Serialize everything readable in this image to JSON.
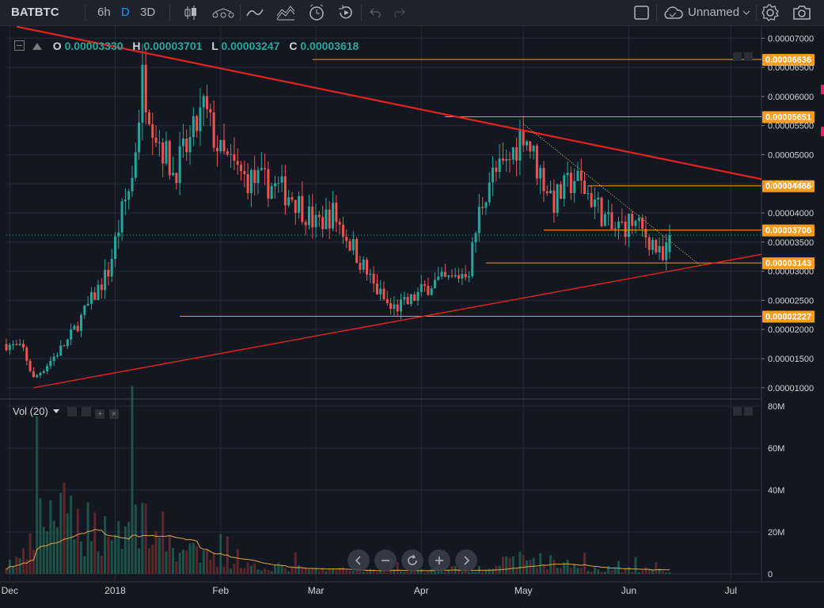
{
  "toolbar": {
    "symbol": "BATBTC",
    "intervals": [
      "6h",
      "D",
      "3D"
    ],
    "active_interval": "D",
    "layout_name": "Unnamed",
    "icons": [
      "candles-icon",
      "indicators-icon",
      "compare-icon",
      "alert-icon",
      "replay-icon",
      "undo-icon",
      "redo-icon",
      "fullscreen-icon",
      "cloud-icon",
      "settings-icon",
      "camera-icon"
    ]
  },
  "legend": {
    "o_label": "O",
    "o_value": "0.00003330",
    "h_label": "H",
    "h_value": "0.00003701",
    "l_label": "L",
    "l_value": "0.00003247",
    "c_label": "C",
    "c_value": "0.00003618"
  },
  "volume_legend": {
    "label": "Vol (20)"
  },
  "colors": {
    "up": "#26a69a",
    "down": "#ef5350",
    "trend": "#e5231d",
    "level": "#f89c1c",
    "bg": "#131722",
    "grid": "#262a36",
    "ma": "#e8a33d"
  },
  "chart_data": [
    {
      "type": "candlestick",
      "title": "",
      "price_axis": {
        "range": [
          8.2e-06,
          7.14e-05
        ],
        "ticks": [
          "0.00007000",
          "0.00006500",
          "0.00006000",
          "0.00005500",
          "0.00005000",
          "0.00004500",
          "0.00004000",
          "0.00003500",
          "0.00003000",
          "0.00002500",
          "0.00002000",
          "0.00001500",
          "0.00001000"
        ]
      },
      "time_axis": {
        "start": "2017-11-30",
        "end": "2018-07-10",
        "ticks": [
          {
            "label": "Dec",
            "date": "2017-12-01"
          },
          {
            "label": "2018",
            "date": "2018-01-01"
          },
          {
            "label": "Feb",
            "date": "2018-02-01"
          },
          {
            "label": "Mar",
            "date": "2018-03-01"
          },
          {
            "label": "Apr",
            "date": "2018-04-01"
          },
          {
            "label": "May",
            "date": "2018-05-01"
          },
          {
            "label": "Jun",
            "date": "2018-06-01"
          },
          {
            "label": "Jul",
            "date": "2018-07-01"
          }
        ]
      },
      "last_price": "0.00003618",
      "series": [
        {
          "name": "BATBTC",
          "type": "candles",
          "anchors": [
            {
              "date": "2017-11-30",
              "close": 1.75e-05
            },
            {
              "date": "2017-12-05",
              "close": 1.65e-05
            },
            {
              "date": "2017-12-08",
              "close": 1.15e-05
            },
            {
              "date": "2017-12-12",
              "close": 1.4e-05
            },
            {
              "date": "2017-12-18",
              "close": 1.8e-05
            },
            {
              "date": "2017-12-24",
              "close": 2.4e-05
            },
            {
              "date": "2017-12-30",
              "close": 3e-05
            },
            {
              "date": "2018-01-03",
              "close": 4e-05
            },
            {
              "date": "2018-01-06",
              "close": 4.6e-05
            },
            {
              "date": "2018-01-09",
              "close": 6.3e-05
            },
            {
              "date": "2018-01-13",
              "close": 5.4e-05
            },
            {
              "date": "2018-01-18",
              "close": 4.7e-05
            },
            {
              "date": "2018-01-23",
              "close": 5.2e-05
            },
            {
              "date": "2018-01-27",
              "close": 5.8e-05
            },
            {
              "date": "2018-02-01",
              "close": 5e-05
            },
            {
              "date": "2018-02-08",
              "close": 4.6e-05
            },
            {
              "date": "2018-02-15",
              "close": 4.5e-05
            },
            {
              "date": "2018-02-22",
              "close": 4.3e-05
            },
            {
              "date": "2018-03-01",
              "close": 3.8e-05
            },
            {
              "date": "2018-03-06",
              "close": 4e-05
            },
            {
              "date": "2018-03-12",
              "close": 3.4e-05
            },
            {
              "date": "2018-03-18",
              "close": 2.75e-05
            },
            {
              "date": "2018-03-23",
              "close": 2.35e-05
            },
            {
              "date": "2018-03-28",
              "close": 2.45e-05
            },
            {
              "date": "2018-04-04",
              "close": 2.8e-05
            },
            {
              "date": "2018-04-10",
              "close": 2.85e-05
            },
            {
              "date": "2018-04-15",
              "close": 3.05e-05
            },
            {
              "date": "2018-04-18",
              "close": 4e-05
            },
            {
              "date": "2018-04-21",
              "close": 4.6e-05
            },
            {
              "date": "2018-04-26",
              "close": 4.8e-05
            },
            {
              "date": "2018-05-01",
              "close": 5.45e-05
            },
            {
              "date": "2018-05-05",
              "close": 4.8e-05
            },
            {
              "date": "2018-05-10",
              "close": 4.2e-05
            },
            {
              "date": "2018-05-16",
              "close": 4.6e-05
            },
            {
              "date": "2018-05-22",
              "close": 4.2e-05
            },
            {
              "date": "2018-05-27",
              "close": 3.7e-05
            },
            {
              "date": "2018-06-02",
              "close": 3.85e-05
            },
            {
              "date": "2018-06-08",
              "close": 3.5e-05
            },
            {
              "date": "2018-06-11",
              "close": 3.15e-05
            },
            {
              "date": "2018-06-13",
              "close": 3.62e-05
            }
          ]
        }
      ],
      "horizontal_levels": [
        "0.00006636",
        "0.00005651",
        "0.00004466",
        "0.00003706",
        "0.00003143",
        "0.00002227"
      ],
      "trendlines": [
        {
          "name": "descending-resistance",
          "from": {
            "date": "2017-12-03",
            "price": 7.2e-05
          },
          "to": {
            "date": "2018-07-10",
            "price": 4.58e-05
          }
        },
        {
          "name": "ascending-support",
          "from": {
            "date": "2017-12-08",
            "price": 1e-05
          },
          "to": {
            "date": "2018-07-10",
            "price": 3.29e-05
          }
        },
        {
          "name": "dotted-downtrend",
          "from": {
            "date": "2018-05-01",
            "price": 5.53e-05
          },
          "to": {
            "date": "2018-06-22",
            "price": 3.1e-05
          }
        }
      ]
    },
    {
      "type": "bar",
      "title": "",
      "series": [
        {
          "name": "Vol (20)",
          "anchors": [
            {
              "date": "2017-11-30",
              "volume": 4000000
            },
            {
              "date": "2017-12-06",
              "volume": 8000000
            },
            {
              "date": "2017-12-12",
              "volume": 28000000
            },
            {
              "date": "2017-12-20",
              "volume": 22000000
            },
            {
              "date": "2017-12-31",
              "volume": 18000000
            },
            {
              "date": "2018-01-09",
              "volume": 25000000
            },
            {
              "date": "2018-01-20",
              "volume": 10000000
            },
            {
              "date": "2018-02-05",
              "volume": 4000000
            },
            {
              "date": "2018-03-01",
              "volume": 2000000
            },
            {
              "date": "2018-04-01",
              "volume": 1500000
            },
            {
              "date": "2018-04-20",
              "volume": 3000000
            },
            {
              "date": "2018-05-02",
              "volume": 7000000
            },
            {
              "date": "2018-05-20",
              "volume": 2500000
            },
            {
              "date": "2018-06-13",
              "volume": 1500000
            }
          ]
        }
      ],
      "ylim": [
        0,
        83000000
      ],
      "ticks": [
        "80M",
        "60M",
        "40M",
        "20M",
        "0"
      ]
    }
  ]
}
